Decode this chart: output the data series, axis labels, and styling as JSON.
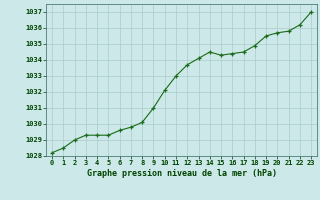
{
  "x": [
    0,
    1,
    2,
    3,
    4,
    5,
    6,
    7,
    8,
    9,
    10,
    11,
    12,
    13,
    14,
    15,
    16,
    17,
    18,
    19,
    20,
    21,
    22,
    23
  ],
  "y": [
    1028.2,
    1028.5,
    1029.0,
    1029.3,
    1029.3,
    1029.3,
    1029.6,
    1029.8,
    1030.1,
    1031.0,
    1032.1,
    1033.0,
    1033.7,
    1034.1,
    1034.5,
    1034.3,
    1034.4,
    1034.5,
    1034.9,
    1035.5,
    1035.7,
    1035.8,
    1036.2,
    1037.0
  ],
  "line_color": "#1a6b1a",
  "marker_color": "#1a6b1a",
  "bg_color": "#cce8e8",
  "grid_color": "#aacccc",
  "xlabel": "Graphe pression niveau de la mer (hPa)",
  "xlabel_color": "#004400",
  "tick_color": "#004400",
  "ylim": [
    1028,
    1037.5
  ],
  "yticks": [
    1028,
    1029,
    1030,
    1031,
    1032,
    1033,
    1034,
    1035,
    1036,
    1037
  ],
  "xticks": [
    0,
    1,
    2,
    3,
    4,
    5,
    6,
    7,
    8,
    9,
    10,
    11,
    12,
    13,
    14,
    15,
    16,
    17,
    18,
    19,
    20,
    21,
    22,
    23
  ],
  "xtick_labels": [
    "0",
    "1",
    "2",
    "3",
    "4",
    "5",
    "6",
    "7",
    "8",
    "9",
    "10",
    "11",
    "12",
    "13",
    "14",
    "15",
    "16",
    "17",
    "18",
    "19",
    "20",
    "21",
    "22",
    "23"
  ]
}
